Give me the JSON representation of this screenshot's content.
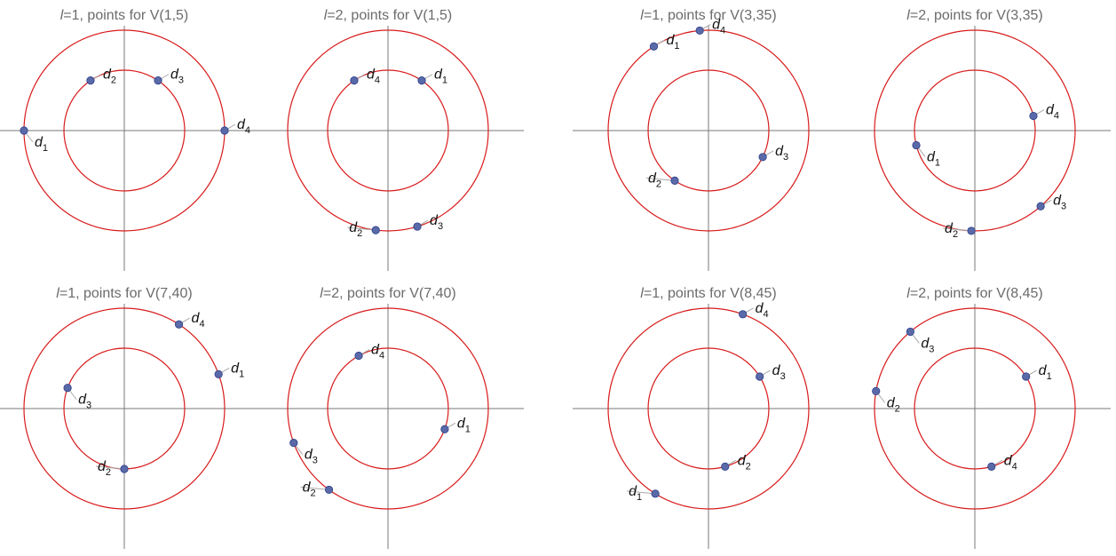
{
  "chart_data": [
    {
      "type": "scatter",
      "title_l": "l",
      "title": "=1, points for V(1,5)",
      "points": [
        {
          "label_d": "d",
          "label_sub": "1",
          "ring": "outer",
          "angle_deg": 180
        },
        {
          "label_d": "d",
          "label_sub": "2",
          "ring": "inner",
          "angle_deg": 124
        },
        {
          "label_d": "d",
          "label_sub": "3",
          "ring": "inner",
          "angle_deg": 56
        },
        {
          "label_d": "d",
          "label_sub": "4",
          "ring": "outer",
          "angle_deg": 0
        }
      ]
    },
    {
      "type": "scatter",
      "title_l": "l",
      "title": "=2, points for V(1,5)",
      "points": [
        {
          "label_d": "d",
          "label_sub": "1",
          "ring": "inner",
          "angle_deg": 56
        },
        {
          "label_d": "d",
          "label_sub": "2",
          "ring": "outer",
          "angle_deg": 263
        },
        {
          "label_d": "d",
          "label_sub": "3",
          "ring": "outer",
          "angle_deg": 287
        },
        {
          "label_d": "d",
          "label_sub": "4",
          "ring": "inner",
          "angle_deg": 124
        }
      ]
    },
    {
      "type": "scatter",
      "title_l": "l",
      "title": "=1, points for V(3,35)",
      "points": [
        {
          "label_d": "d",
          "label_sub": "1",
          "ring": "outer",
          "angle_deg": 123
        },
        {
          "label_d": "d",
          "label_sub": "2",
          "ring": "inner",
          "angle_deg": 236
        },
        {
          "label_d": "d",
          "label_sub": "3",
          "ring": "inner",
          "angle_deg": 334
        },
        {
          "label_d": "d",
          "label_sub": "4",
          "ring": "outer",
          "angle_deg": 95
        }
      ]
    },
    {
      "type": "scatter",
      "title_l": "l",
      "title": "=2, points for V(3,35)",
      "points": [
        {
          "label_d": "d",
          "label_sub": "1",
          "ring": "inner",
          "angle_deg": 194
        },
        {
          "label_d": "d",
          "label_sub": "2",
          "ring": "outer",
          "angle_deg": 268
        },
        {
          "label_d": "d",
          "label_sub": "3",
          "ring": "outer",
          "angle_deg": 311
        },
        {
          "label_d": "d",
          "label_sub": "4",
          "ring": "inner",
          "angle_deg": 14
        }
      ]
    },
    {
      "type": "scatter",
      "title_l": "l",
      "title": "=1, points for V(7,40)",
      "points": [
        {
          "label_d": "d",
          "label_sub": "1",
          "ring": "outer",
          "angle_deg": 20
        },
        {
          "label_d": "d",
          "label_sub": "2",
          "ring": "inner",
          "angle_deg": 270
        },
        {
          "label_d": "d",
          "label_sub": "3",
          "ring": "inner",
          "angle_deg": 160
        },
        {
          "label_d": "d",
          "label_sub": "4",
          "ring": "outer",
          "angle_deg": 57
        }
      ]
    },
    {
      "type": "scatter",
      "title_l": "l",
      "title": "=2, points for V(7,40)",
      "points": [
        {
          "label_d": "d",
          "label_sub": "1",
          "ring": "inner",
          "angle_deg": 340
        },
        {
          "label_d": "d",
          "label_sub": "2",
          "ring": "outer",
          "angle_deg": 234
        },
        {
          "label_d": "d",
          "label_sub": "3",
          "ring": "outer",
          "angle_deg": 200
        },
        {
          "label_d": "d",
          "label_sub": "4",
          "ring": "inner",
          "angle_deg": 119
        }
      ]
    },
    {
      "type": "scatter",
      "title_l": "l",
      "title": "=1, points for V(8,45)",
      "points": [
        {
          "label_d": "d",
          "label_sub": "1",
          "ring": "outer",
          "angle_deg": 238
        },
        {
          "label_d": "d",
          "label_sub": "2",
          "ring": "inner",
          "angle_deg": 286
        },
        {
          "label_d": "d",
          "label_sub": "3",
          "ring": "inner",
          "angle_deg": 32
        },
        {
          "label_d": "d",
          "label_sub": "4",
          "ring": "outer",
          "angle_deg": 70
        }
      ]
    },
    {
      "type": "scatter",
      "title_l": "l",
      "title": "=2, points for V(8,45)",
      "points": [
        {
          "label_d": "d",
          "label_sub": "1",
          "ring": "inner",
          "angle_deg": 32
        },
        {
          "label_d": "d",
          "label_sub": "2",
          "ring": "outer",
          "angle_deg": 170
        },
        {
          "label_d": "d",
          "label_sub": "3",
          "ring": "outer",
          "angle_deg": 130
        },
        {
          "label_d": "d",
          "label_sub": "4",
          "ring": "inner",
          "angle_deg": 286
        }
      ]
    }
  ],
  "colors": {
    "ring": "#d81b1b",
    "point": "#5a6aa8",
    "axis": "#7a7a7a",
    "title": "#6b6b6b"
  }
}
